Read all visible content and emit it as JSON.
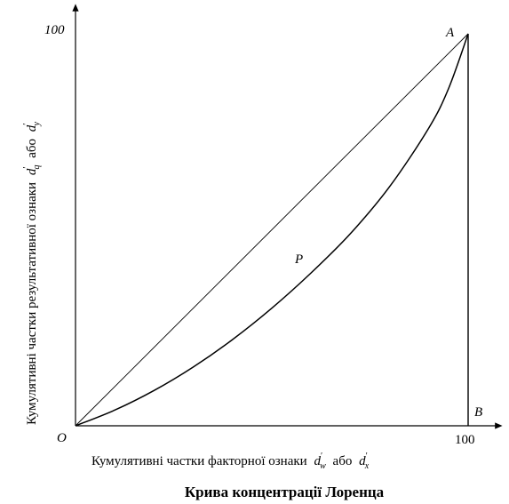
{
  "chart_data": {
    "type": "line",
    "title": "Крива концентрації Лоренца",
    "xlabel": {
      "text": "Кумулятивні частки факторної ознаки",
      "var1": "d",
      "var1_sub": "w",
      "connector": "або",
      "var2": "d",
      "var2_sub": "x"
    },
    "ylabel": {
      "text": "Кумулятивні частки результативної ознаки",
      "var1": "d",
      "var1_sub": "q",
      "connector": "або",
      "var2": "d",
      "var2_sub": "y"
    },
    "xlim": [
      0,
      100
    ],
    "ylim": [
      0,
      100
    ],
    "x_tick_label": "100",
    "y_tick_label": "100",
    "point_labels": {
      "origin": "O",
      "a": "A",
      "b": "B",
      "area": "P"
    },
    "series": [
      {
        "x": [
          0,
          100
        ],
        "y": [
          0,
          100
        ]
      },
      {
        "x": [
          0,
          10,
          20,
          30,
          40,
          50,
          60,
          70,
          80,
          90,
          95,
          100
        ],
        "y": [
          0,
          4,
          9,
          15,
          22,
          30,
          39,
          49,
          61,
          76,
          86,
          100
        ]
      }
    ]
  }
}
